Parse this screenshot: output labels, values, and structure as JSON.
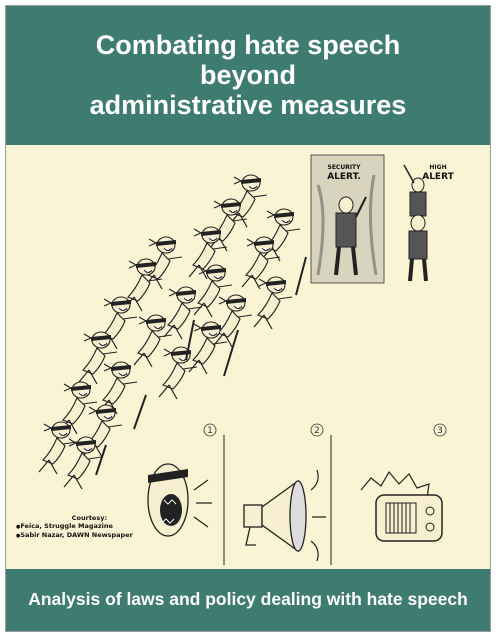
{
  "cover": {
    "title_lines": [
      "Combating hate speech",
      "beyond",
      "administrative measures"
    ],
    "subtitle": "Analysis of laws and policy dealing with hate speech",
    "illustration": {
      "alert_left": [
        "SECURITY",
        "ALERT."
      ],
      "alert_right": [
        "HIGH",
        "ALERT"
      ],
      "panels": [
        "1",
        "2",
        "3"
      ]
    },
    "courtesy": {
      "heading": "Courtesy:",
      "lines": [
        "Feica, Struggle Magazine",
        "Sabir Nazar, DAWN Newspaper"
      ]
    },
    "colors": {
      "band": "#3e7b70",
      "paper": "#fbf4d4",
      "ink": "#222222"
    }
  }
}
